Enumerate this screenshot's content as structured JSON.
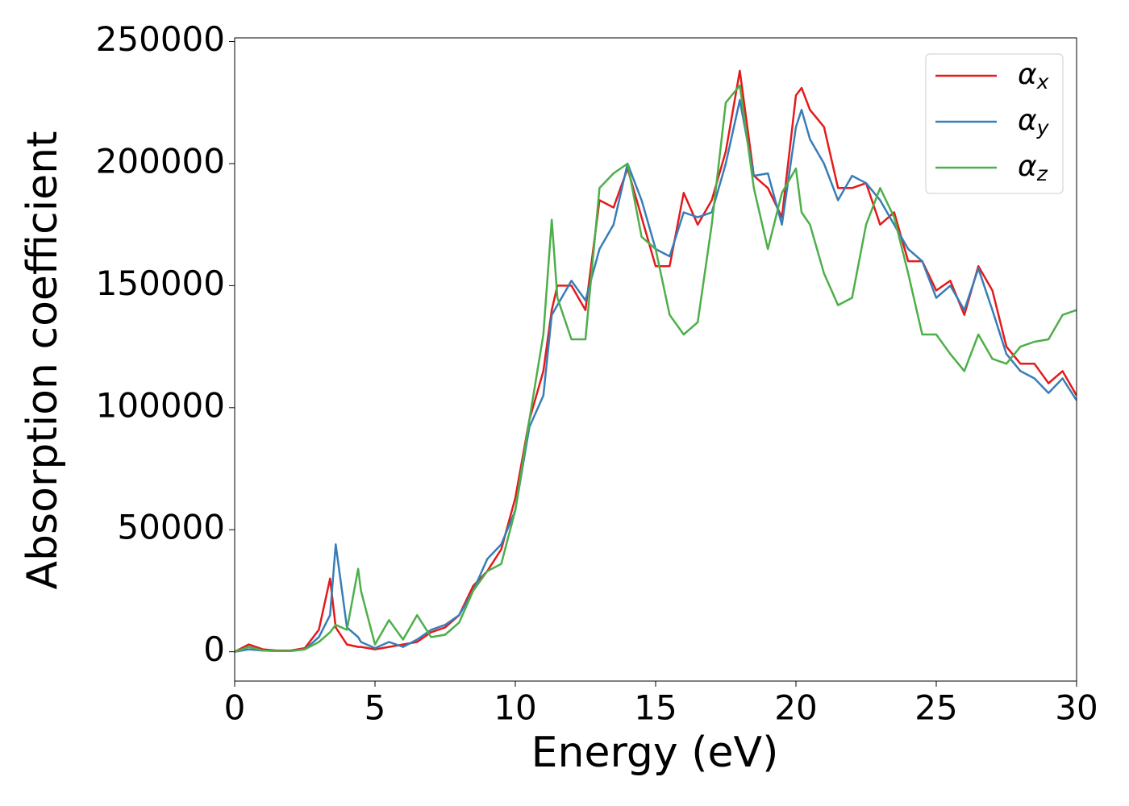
{
  "chart_data": {
    "type": "line",
    "xlabel": "Energy (eV)",
    "ylabel": "Absorption coefficient",
    "x": [
      0,
      0.5,
      1,
      1.5,
      2,
      2.5,
      3,
      3.4,
      3.6,
      4,
      4.4,
      4.5,
      5,
      5.5,
      6,
      6.5,
      7,
      7.5,
      8,
      8.5,
      9,
      9.5,
      10,
      10.5,
      11,
      11.3,
      11.5,
      12,
      12.5,
      13,
      13.5,
      14,
      14.5,
      15,
      15.5,
      16,
      16.5,
      17,
      17.5,
      18,
      18.5,
      19,
      19.5,
      20,
      20.2,
      20.5,
      21,
      21.5,
      22,
      22.5,
      23,
      23.5,
      24,
      24.5,
      25,
      25.5,
      26,
      26.5,
      27,
      27.5,
      28,
      28.5,
      29,
      29.5,
      30
    ],
    "series": [
      {
        "name": "αx",
        "color": "#e41a1c",
        "values": [
          0,
          3000,
          1000,
          500,
          500,
          1500,
          9000,
          30000,
          10000,
          3000,
          2000,
          2000,
          1000,
          2000,
          3000,
          4000,
          8000,
          10000,
          15000,
          27000,
          33000,
          42000,
          63000,
          95000,
          115000,
          140000,
          150000,
          150000,
          140000,
          185000,
          182000,
          198000,
          178000,
          158000,
          158000,
          188000,
          175000,
          185000,
          205000,
          238000,
          195000,
          190000,
          178000,
          228000,
          231000,
          222000,
          215000,
          190000,
          190000,
          192000,
          175000,
          180000,
          160000,
          160000,
          148000,
          152000,
          138000,
          158000,
          148000,
          125000,
          118000,
          118000,
          110000,
          115000,
          105000
        ]
      },
      {
        "name": "αy",
        "color": "#377eb8",
        "values": [
          0,
          1000,
          500,
          300,
          300,
          1000,
          6000,
          15000,
          44000,
          10000,
          6000,
          4000,
          1500,
          4000,
          2000,
          5000,
          9000,
          11000,
          15000,
          25000,
          38000,
          44000,
          58000,
          92000,
          105000,
          138000,
          142000,
          152000,
          144000,
          165000,
          175000,
          200000,
          185000,
          165000,
          162000,
          180000,
          178000,
          180000,
          200000,
          226000,
          195000,
          196000,
          175000,
          215000,
          222000,
          210000,
          200000,
          185000,
          195000,
          192000,
          185000,
          175000,
          165000,
          160000,
          145000,
          150000,
          140000,
          157000,
          140000,
          122000,
          115000,
          112000,
          106000,
          112000,
          103000
        ]
      },
      {
        "name": "αz",
        "color": "#4daf4a",
        "values": [
          0,
          2000,
          500,
          300,
          300,
          1000,
          4000,
          8000,
          11000,
          9000,
          34000,
          25000,
          3000,
          13000,
          5000,
          15000,
          6000,
          7000,
          12000,
          25000,
          33000,
          36000,
          58000,
          95000,
          130000,
          177000,
          145000,
          128000,
          128000,
          190000,
          196000,
          200000,
          170000,
          165000,
          138000,
          130000,
          135000,
          175000,
          225000,
          232000,
          190000,
          165000,
          188000,
          198000,
          180000,
          175000,
          155000,
          142000,
          145000,
          175000,
          190000,
          178000,
          155000,
          130000,
          130000,
          122000,
          115000,
          130000,
          120000,
          118000,
          125000,
          127000,
          128000,
          138000,
          140000
        ]
      }
    ],
    "xlim": [
      0,
      30
    ],
    "xticks": [
      0,
      5,
      10,
      15,
      20,
      25,
      30
    ],
    "ylim": [
      -12000,
      251500
    ],
    "yticks": [
      0,
      50000,
      100000,
      150000,
      200000,
      250000
    ],
    "legend": "upper right"
  }
}
